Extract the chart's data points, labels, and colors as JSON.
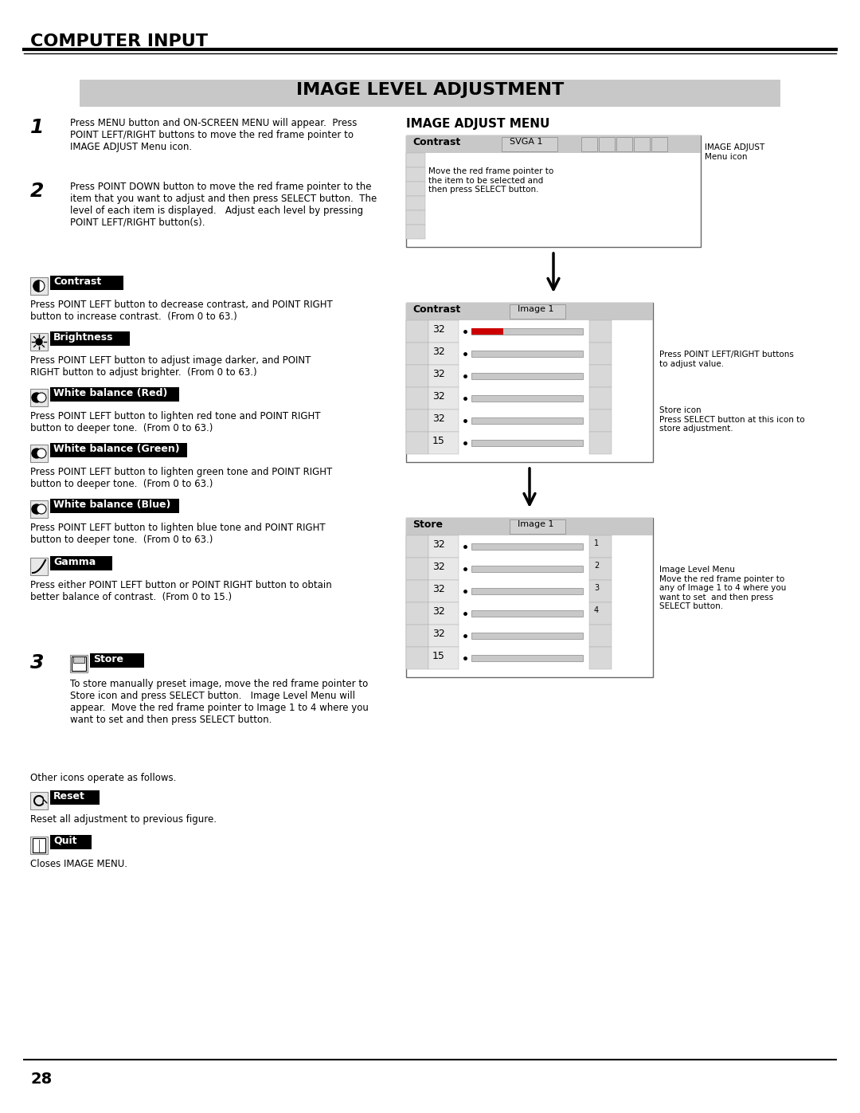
{
  "page_title": "COMPUTER INPUT",
  "section_title": "IMAGE LEVEL ADJUSTMENT",
  "right_panel_title": "IMAGE ADJUST MENU",
  "bg_color": "#ffffff",
  "header_bg": "#d8d8d8",
  "page_number": "28",
  "step1_bold": "1",
  "step1_text": "Press MENU button and ON-SCREEN MENU will appear.  Press\nPOINT LEFT/RIGHT buttons to move the red frame pointer to\nIMAGE ADJUST Menu icon.",
  "step2_bold": "2",
  "step2_text": "Press POINT DOWN button to move the red frame pointer to the\nitem that you want to adjust and then press SELECT button.  The\nlevel of each item is displayed.   Adjust each level by pressing\nPOINT LEFT/RIGHT button(s).",
  "items": [
    {
      "icon": "contrast",
      "label": "Contrast",
      "desc": "Press POINT LEFT button to decrease contrast, and POINT RIGHT\nbutton to increase contrast.  (From 0 to 63.)"
    },
    {
      "icon": "brightness",
      "label": "Brightness",
      "desc": "Press POINT LEFT button to adjust image darker, and POINT\nRIGHT button to adjust brighter.  (From 0 to 63.)"
    },
    {
      "icon": "wb_red",
      "label": "White balance (Red)",
      "desc": "Press POINT LEFT button to lighten red tone and POINT RIGHT\nbutton to deeper tone.  (From 0 to 63.)"
    },
    {
      "icon": "wb_green",
      "label": "White balance (Green)",
      "desc": "Press POINT LEFT button to lighten green tone and POINT RIGHT\nbutton to deeper tone.  (From 0 to 63.)"
    },
    {
      "icon": "wb_blue",
      "label": "White balance (Blue)",
      "desc": "Press POINT LEFT button to lighten blue tone and POINT RIGHT\nbutton to deeper tone.  (From 0 to 63.)"
    },
    {
      "icon": "gamma",
      "label": "Gamma",
      "desc": "Press either POINT LEFT button or POINT RIGHT button to obtain\nbetter balance of contrast.  (From 0 to 15.)"
    }
  ],
  "step3_bold": "3",
  "step3_label": "Store",
  "step3_text": "To store manually preset image, move the red frame pointer to\nStore icon and press SELECT button.   Image Level Menu will\nappear.  Move the red frame pointer to Image 1 to 4 where you\nwant to set and then press SELECT button.",
  "other_icons_text": "Other icons operate as follows.",
  "reset_label": "Reset",
  "reset_desc": "Reset all adjustment to previous figure.",
  "quit_label": "Quit",
  "quit_desc": "Closes IMAGE MENU.",
  "right_note1": "Move the red frame pointer to\nthe item to be selected and\nthen press SELECT button.",
  "right_note2": "Press POINT LEFT/RIGHT buttons\nto adjust value.",
  "right_note3": "Store icon\nPress SELECT button at this icon to\nstore adjustment.",
  "right_note4": "Image Level Menu\nMove the red frame pointer to\nany of Image 1 to 4 where you\nwant to set  and then press\nSELECT button."
}
